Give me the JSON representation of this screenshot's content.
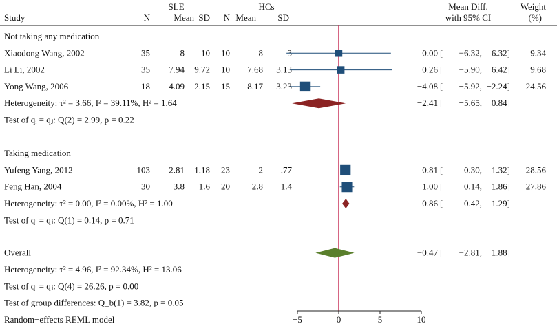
{
  "chart_data": {
    "type": "forest",
    "header": {
      "study": "Study",
      "group1": "SLE",
      "group2": "HCs",
      "n": "N",
      "mean": "Mean",
      "sd": "SD",
      "effect_line1": "Mean Diff.",
      "effect_line2": "with 95% CI",
      "weight_line1": "Weight",
      "weight_line2": "(%)"
    },
    "xaxis": {
      "min": -5,
      "max": 10,
      "ticks": [
        -5,
        0,
        5,
        10
      ],
      "tick_labels": [
        "−5",
        "0",
        "5",
        "10"
      ]
    },
    "colors": {
      "study": "#1f4e79",
      "subgroup": "#8b2323",
      "overall": "#5a7f2c",
      "zero_line": "#c8325a"
    },
    "groups": [
      {
        "label": "Not taking any medication",
        "studies": [
          {
            "name": "Xiaodong Wang, 2002",
            "n1": "35",
            "mean1": "8",
            "sd1": "10",
            "n2": "10",
            "mean2": "8",
            "sd2": "3",
            "effect": 0.0,
            "low": -6.32,
            "high": 6.32,
            "weight": 9.34,
            "effect_text": "0.00",
            "low_text": "−6.32,",
            "high_text": "6.32]",
            "weight_text": "9.34"
          },
          {
            "name": "Li Li, 2002",
            "n1": "35",
            "mean1": "7.94",
            "sd1": "9.72",
            "n2": "10",
            "mean2": "7.68",
            "sd2": "3.13",
            "effect": 0.26,
            "low": -5.9,
            "high": 6.42,
            "weight": 9.68,
            "effect_text": "0.26",
            "low_text": "−5.90,",
            "high_text": "6.42]",
            "weight_text": "9.68"
          },
          {
            "name": "Yong Wang, 2006",
            "n1": "18",
            "mean1": "4.09",
            "sd1": "2.15",
            "n2": "15",
            "mean2": "8.17",
            "sd2": "3.23",
            "effect": -4.08,
            "low": -5.92,
            "high": -2.24,
            "weight": 24.56,
            "effect_text": "−4.08",
            "low_text": "−5.92,",
            "high_text": "−2.24]",
            "weight_text": "24.56"
          }
        ],
        "summary": {
          "effect": -2.41,
          "low": -5.65,
          "high": 0.84,
          "effect_text": "−2.41",
          "low_text": "−5.65,",
          "high_text": "0.84]"
        },
        "heterogeneity": "Heterogeneity: τ² = 3.66, I² = 39.11%, H² = 1.64",
        "test": "Test of qᵢ = qⱼ: Q(2) = 2.99, p = 0.22"
      },
      {
        "label": "Taking medication",
        "studies": [
          {
            "name": "Yufeng Yang, 2012",
            "n1": "103",
            "mean1": "2.81",
            "sd1": "1.18",
            "n2": "23",
            "mean2": "2",
            "sd2": ".77",
            "effect": 0.81,
            "low": 0.3,
            "high": 1.32,
            "weight": 28.56,
            "effect_text": "0.81",
            "low_text": "0.30,",
            "high_text": "1.32]",
            "weight_text": "28.56"
          },
          {
            "name": "Feng Han, 2004",
            "n1": "30",
            "mean1": "3.8",
            "sd1": "1.6",
            "n2": "20",
            "mean2": "2.8",
            "sd2": "1.4",
            "effect": 1.0,
            "low": 0.14,
            "high": 1.86,
            "weight": 27.86,
            "effect_text": "1.00",
            "low_text": "0.14,",
            "high_text": "1.86]",
            "weight_text": "27.86"
          }
        ],
        "summary": {
          "effect": 0.86,
          "low": 0.42,
          "high": 1.29,
          "effect_text": "0.86",
          "low_text": "0.42,",
          "high_text": "1.29]"
        },
        "heterogeneity": "Heterogeneity: τ² = 0.00, I² = 0.00%, H² = 1.00",
        "test": "Test of qᵢ = qⱼ: Q(1) = 0.14, p = 0.71"
      }
    ],
    "overall": {
      "label": "Overall",
      "effect": -0.47,
      "low": -2.81,
      "high": 1.88,
      "effect_text": "−0.47",
      "low_text": "−2.81,",
      "high_text": "1.88]",
      "heterogeneity": "Heterogeneity: τ² = 4.96, I² = 92.34%, H² = 13.06",
      "test": "Test of qᵢ = qⱼ: Q(4) = 26.26, p = 0.00",
      "group_test": "Test of group differences: Q_b(1) = 3.82, p = 0.05"
    },
    "footnote": "Random−effects REML model"
  }
}
